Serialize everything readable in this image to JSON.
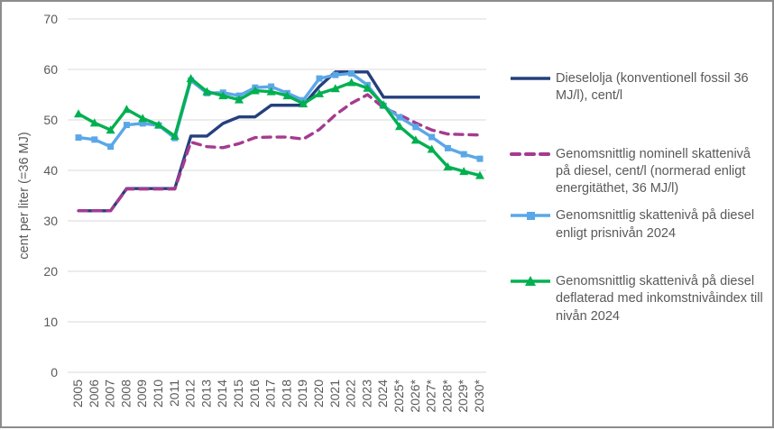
{
  "colors": {
    "navy": "#24407C",
    "purple": "#A63A8F",
    "lightblue": "#5AA7E8",
    "green": "#00B050",
    "gridline": "#D9D9D9",
    "axis_text": "#595959",
    "frame_border": "#8c8c8c"
  },
  "chart_data": {
    "type": "line",
    "title": "",
    "xlabel": "",
    "ylabel": "cent per liter (=36 MJ)",
    "ylim": [
      0,
      70
    ],
    "y_ticks": [
      0,
      10,
      20,
      30,
      40,
      50,
      60,
      70
    ],
    "grid": "horizontal",
    "legend_position": "right",
    "categories": [
      "2005",
      "2006",
      "2007",
      "2008",
      "2009",
      "2010",
      "2011",
      "2012",
      "2013",
      "2014",
      "2015",
      "2016",
      "2017",
      "2018",
      "2019",
      "2020",
      "2021",
      "2022",
      "2023",
      "2024",
      "2025*",
      "2026*",
      "2027*",
      "2028*",
      "2029*",
      "2030*"
    ],
    "series": [
      {
        "name": "Dieselolja (konventionell fossil 36 MJ/l), cent/l",
        "color": "#24407C",
        "line_style": "solid",
        "marker": "none",
        "values": [
          32,
          32,
          32,
          36.4,
          36.4,
          36.4,
          36.4,
          46.8,
          46.8,
          49.3,
          50.6,
          50.6,
          52.9,
          52.9,
          52.9,
          56.6,
          59.5,
          59.5,
          59.5,
          54.5,
          54.5,
          54.5,
          54.5,
          54.5,
          54.5,
          54.5
        ]
      },
      {
        "name": "Genomsnittlig nominell skattenivå på diesel, cent/l (normerad enligt energitäthet, 36 MJ/l)",
        "color": "#A63A8F",
        "line_style": "dashed",
        "marker": "none",
        "values": [
          32,
          32,
          32,
          36.3,
          36.3,
          36.3,
          36.3,
          45.6,
          44.7,
          44.5,
          45.3,
          46.5,
          46.6,
          46.6,
          46.2,
          48.1,
          51.0,
          53.3,
          55.0,
          52.4,
          51.0,
          49.4,
          48.0,
          47.2,
          47.1,
          47.0
        ]
      },
      {
        "name": "Genomsnittlig skattenivå på diesel enligt prisnivån 2024",
        "color": "#5AA7E8",
        "line_style": "solid",
        "marker": "square",
        "values": [
          46.5,
          46.1,
          44.7,
          49.0,
          49.3,
          48.9,
          46.4,
          57.8,
          55.3,
          55.4,
          54.8,
          56.4,
          56.6,
          55.3,
          53.9,
          58.2,
          58.9,
          59.2,
          56.9,
          52.8,
          50.5,
          48.6,
          46.6,
          44.4,
          43.2,
          42.3
        ]
      },
      {
        "name": "Genomsnittlig skattenivå på diesel deflaterad med inkomstnivåindex till nivån 2024",
        "color": "#00B050",
        "line_style": "solid",
        "marker": "triangle",
        "values": [
          51.2,
          49.4,
          48.0,
          52.1,
          50.3,
          49.0,
          46.8,
          58.2,
          55.6,
          54.8,
          54.0,
          55.8,
          55.6,
          54.8,
          53.2,
          55.2,
          56.2,
          57.4,
          56.3,
          53.0,
          48.7,
          46.0,
          44.2,
          40.7,
          39.8,
          39.0
        ]
      }
    ]
  },
  "legend": {
    "items": [
      {
        "label": "Dieselolja (konventionell fossil 36 MJ/l), cent/l"
      },
      {
        "label": "Genomsnittlig nominell skattenivå på diesel, cent/l (normerad enligt energitäthet, 36 MJ/l)"
      },
      {
        "label": "Genomsnittlig skattenivå på diesel enligt prisnivån 2024"
      },
      {
        "label": "Genomsnittlig skattenivå på diesel deflaterad med inkomstnivåindex till nivån 2024"
      }
    ]
  }
}
